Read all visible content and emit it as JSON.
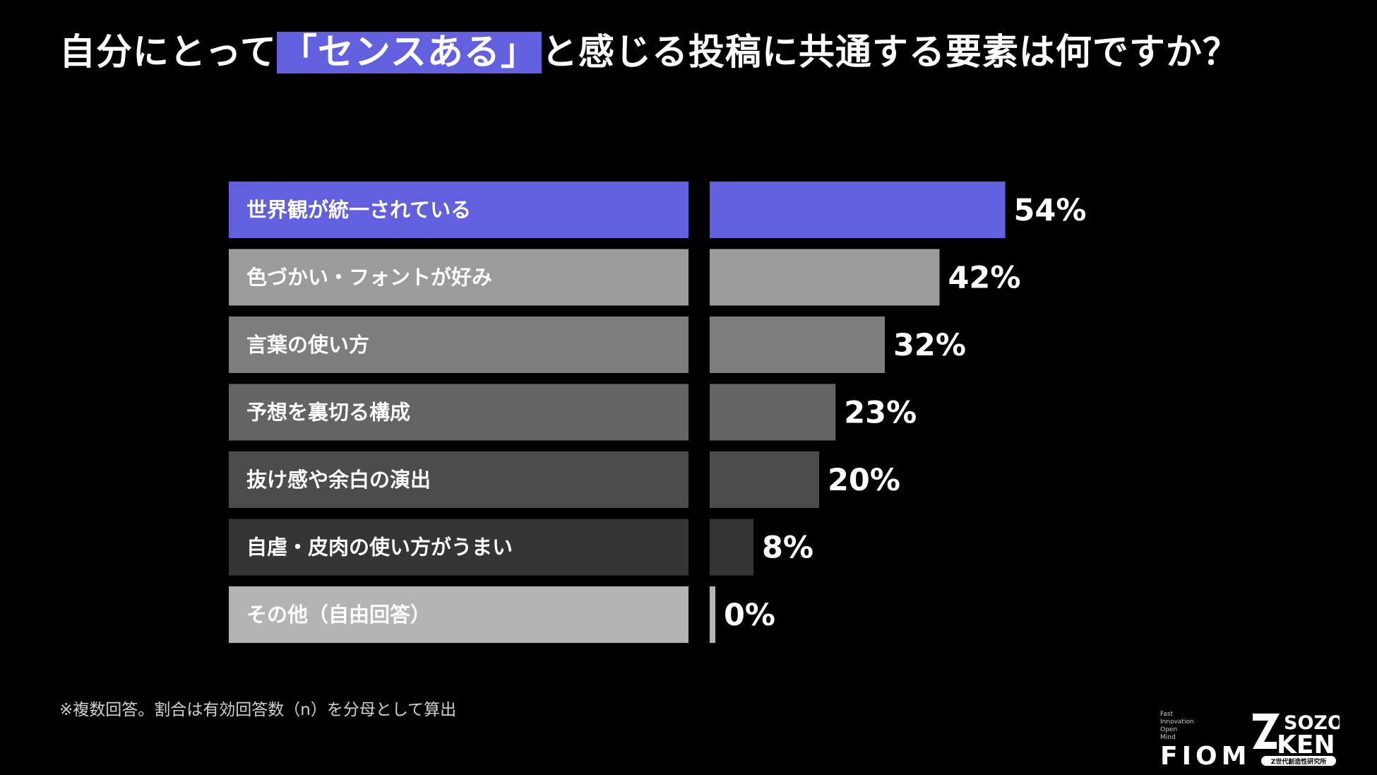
{
  "title": {
    "before": "自分にとって",
    "highlight": "「センスある」",
    "after": "と感じる投稿に共通する要素は何ですか？"
  },
  "footnote": "※複数回答。割合は有効回答数（n）を分母として算出",
  "logos": {
    "fiom_words": [
      "Fast",
      "Innovation",
      "Open",
      "Mind"
    ],
    "fiom_mark": "FIOM",
    "zken_mark": "SOZO",
    "zken_mark2": "KEN",
    "zken_sub": "Z世代創造性研究所"
  },
  "chart_data": {
    "type": "bar",
    "orientation": "horizontal",
    "categories": [
      "世界観が統一されている",
      "色づかい・フォントが好み",
      "言葉の使い方",
      "予想を裏切る構成",
      "抜け感や余白の演出",
      "自虐・皮肉の使い方がうまい",
      "その他（自由回答）"
    ],
    "values": [
      54,
      42,
      32,
      23,
      20,
      8,
      0
    ],
    "value_labels": [
      "54%",
      "42%",
      "32%",
      "23%",
      "20%",
      "8%",
      "0%"
    ],
    "unit": "%",
    "xlim": [
      0,
      100
    ],
    "colors": [
      "#6360e0",
      "#9b9b9b",
      "#7d7d7d",
      "#646464",
      "#4c4c4c",
      "#353535",
      "#b4b4b4"
    ],
    "grid": false
  }
}
